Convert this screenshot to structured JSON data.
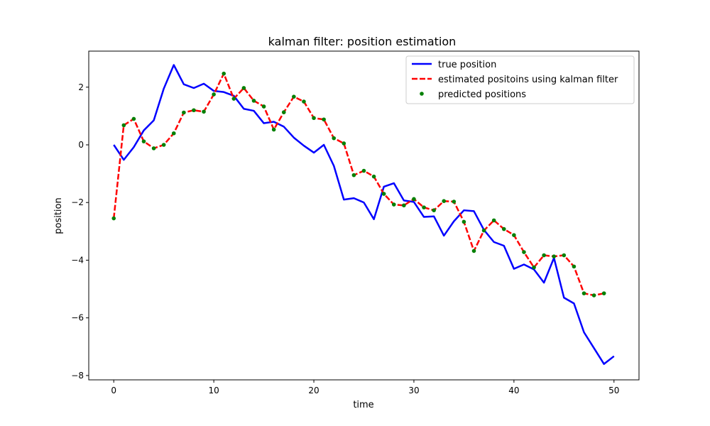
{
  "chart_data": {
    "type": "line",
    "title": "kalman filter: position estimation",
    "xlabel": "time",
    "ylabel": "position",
    "xlim": [
      -2.5,
      52.5
    ],
    "ylim": [
      -8.15,
      3.25
    ],
    "xticks": [
      0,
      10,
      20,
      30,
      40,
      50
    ],
    "yticks": [
      -8,
      -6,
      -4,
      -2,
      0,
      2
    ],
    "grid": false,
    "legend_position": "top-right",
    "series": [
      {
        "name": "true position",
        "kind": "line",
        "color": "#0000ff",
        "x": [
          0,
          1,
          2,
          3,
          4,
          5,
          6,
          7,
          8,
          9,
          10,
          11,
          12,
          13,
          14,
          15,
          16,
          17,
          18,
          19,
          20,
          21,
          22,
          23,
          24,
          25,
          26,
          27,
          28,
          29,
          30,
          31,
          32,
          33,
          34,
          35,
          36,
          37,
          38,
          39,
          40,
          41,
          42,
          43,
          44,
          45,
          46,
          47,
          48,
          49,
          50
        ],
        "y": [
          0.0,
          -0.52,
          -0.08,
          0.5,
          0.85,
          1.95,
          2.77,
          2.1,
          1.97,
          2.12,
          1.87,
          1.83,
          1.7,
          1.25,
          1.18,
          0.75,
          0.8,
          0.63,
          0.25,
          -0.03,
          -0.27,
          0.0,
          -0.73,
          -1.9,
          -1.85,
          -2.0,
          -2.58,
          -1.45,
          -1.33,
          -1.93,
          -1.98,
          -2.5,
          -2.48,
          -3.15,
          -2.65,
          -2.27,
          -2.3,
          -2.95,
          -3.37,
          -3.5,
          -4.3,
          -4.15,
          -4.32,
          -4.78,
          -3.92,
          -5.3,
          -5.5,
          -6.5,
          -7.05,
          -7.6,
          -7.33
        ]
      },
      {
        "name": "estimated positoins using kalman filter",
        "kind": "dashed-line",
        "color": "#ff0000",
        "x": [
          0,
          1,
          2,
          3,
          4,
          5,
          6,
          7,
          8,
          9,
          10,
          11,
          12,
          13,
          14,
          15,
          16,
          17,
          18,
          19,
          20,
          21,
          22,
          23,
          24,
          25,
          26,
          27,
          28,
          29,
          30,
          31,
          32,
          33,
          34,
          35,
          36,
          37,
          38,
          39,
          40,
          41,
          42,
          43,
          44,
          45,
          46,
          47,
          48,
          49
        ],
        "y": [
          -2.55,
          0.68,
          0.9,
          0.12,
          -0.12,
          0.0,
          0.4,
          1.12,
          1.2,
          1.15,
          1.75,
          2.47,
          1.6,
          1.97,
          1.53,
          1.33,
          0.53,
          1.13,
          1.67,
          1.5,
          0.93,
          0.88,
          0.23,
          0.05,
          -1.05,
          -0.9,
          -1.1,
          -1.7,
          -2.07,
          -2.1,
          -1.88,
          -2.17,
          -2.27,
          -1.95,
          -1.97,
          -2.67,
          -3.68,
          -2.97,
          -2.62,
          -2.92,
          -3.13,
          -3.72,
          -4.25,
          -3.83,
          -3.87,
          -3.83,
          -4.22,
          -5.15,
          -5.22,
          -5.15
        ]
      },
      {
        "name": "predicted positions",
        "kind": "scatter",
        "color": "#008000",
        "x": [
          0,
          1,
          2,
          3,
          4,
          5,
          6,
          7,
          8,
          9,
          10,
          11,
          12,
          13,
          14,
          15,
          16,
          17,
          18,
          19,
          20,
          21,
          22,
          23,
          24,
          25,
          26,
          27,
          28,
          29,
          30,
          31,
          32,
          33,
          34,
          35,
          36,
          37,
          38,
          39,
          40,
          41,
          42,
          43,
          44,
          45,
          46,
          47,
          48,
          49
        ],
        "y": [
          -2.55,
          0.68,
          0.9,
          0.12,
          -0.12,
          0.0,
          0.4,
          1.12,
          1.2,
          1.15,
          1.75,
          2.47,
          1.6,
          1.97,
          1.53,
          1.33,
          0.53,
          1.13,
          1.67,
          1.5,
          0.93,
          0.88,
          0.23,
          0.05,
          -1.05,
          -0.9,
          -1.1,
          -1.7,
          -2.07,
          -2.1,
          -1.88,
          -2.17,
          -2.27,
          -1.95,
          -1.97,
          -2.67,
          -3.68,
          -2.97,
          -2.62,
          -2.92,
          -3.13,
          -3.72,
          -4.25,
          -3.83,
          -3.87,
          -3.83,
          -4.22,
          -5.15,
          -5.22,
          -5.15
        ]
      }
    ]
  }
}
